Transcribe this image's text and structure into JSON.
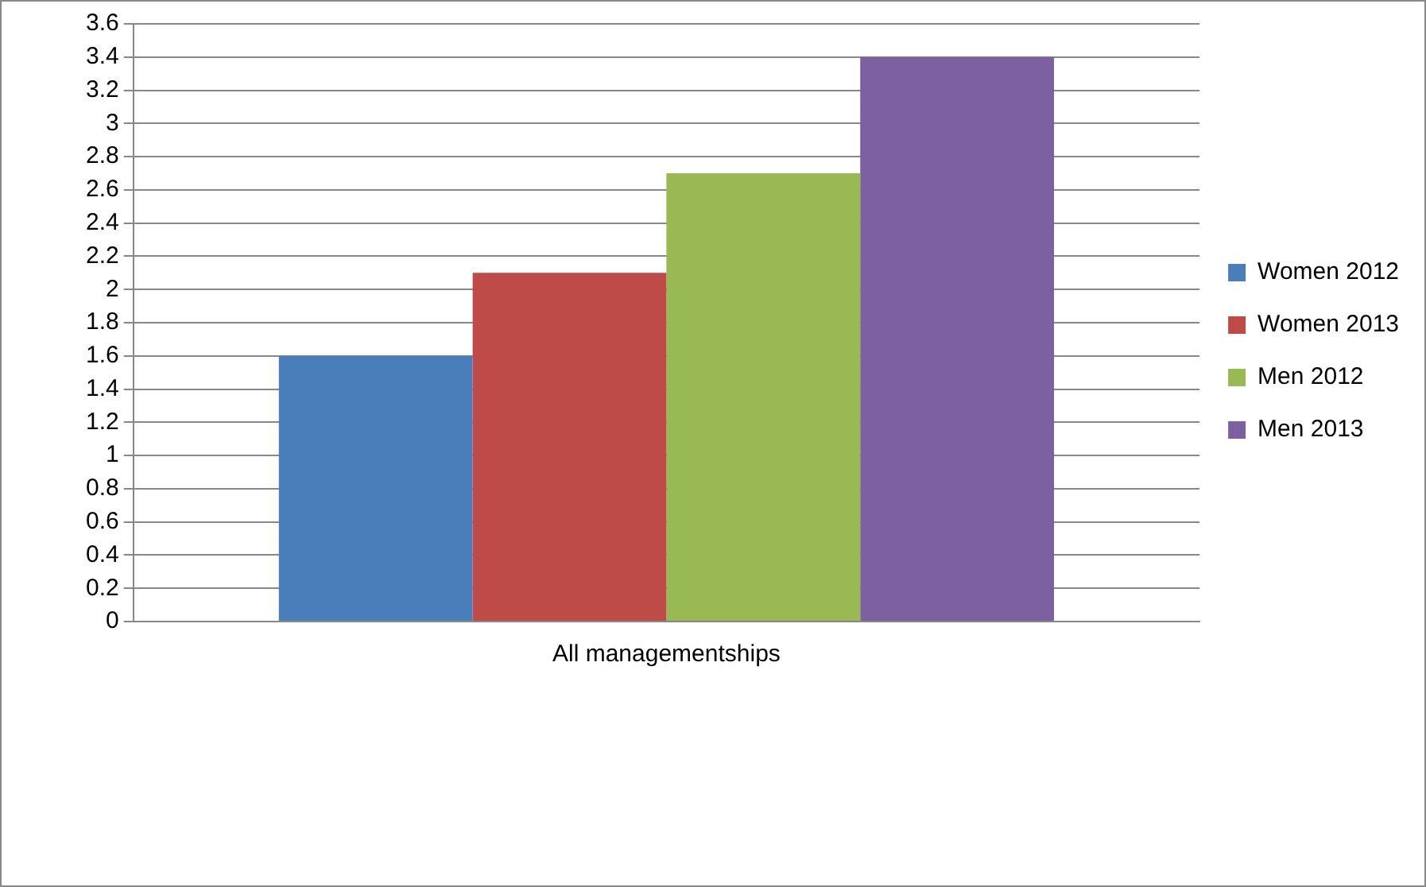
{
  "chart_data": {
    "type": "bar",
    "categories": [
      "All managementships"
    ],
    "series": [
      {
        "name": "Women 2012",
        "color": "#4a7ebb",
        "values": [
          1.6
        ]
      },
      {
        "name": "Women 2013",
        "color": "#be4b48",
        "values": [
          2.1
        ]
      },
      {
        "name": "Men 2012",
        "color": "#98b954",
        "values": [
          2.7
        ]
      },
      {
        "name": "Men 2013",
        "color": "#7d60a0",
        "values": [
          3.4
        ]
      }
    ],
    "ylim": [
      0,
      3.6
    ],
    "yticks": [
      0,
      0.2,
      0.4,
      0.6,
      0.8,
      1,
      1.2,
      1.4,
      1.6,
      1.8,
      2,
      2.2,
      2.4,
      2.6,
      2.8,
      3,
      3.2,
      3.4,
      3.6
    ],
    "grid": "y",
    "legend": "right"
  }
}
